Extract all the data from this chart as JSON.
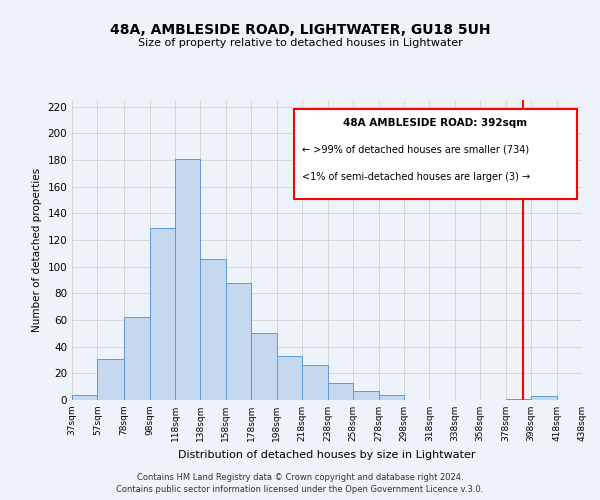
{
  "title": "48A, AMBLESIDE ROAD, LIGHTWATER, GU18 5UH",
  "subtitle": "Size of property relative to detached houses in Lightwater",
  "xlabel": "Distribution of detached houses by size in Lightwater",
  "ylabel": "Number of detached properties",
  "bar_color": "#c5d8f0",
  "bar_edge_color": "#5b9bd5",
  "bg_color": "#eef2f9",
  "grid_color": "#cccccc",
  "red_line_x": 392,
  "legend_title": "48A AMBLESIDE ROAD: 392sqm",
  "legend_line1": "← >99% of detached houses are smaller (734)",
  "legend_line2": "<1% of semi-detached houses are larger (3) →",
  "bin_edges": [
    37,
    57,
    78,
    98,
    118,
    138,
    158,
    178,
    198,
    218,
    238,
    258,
    278,
    298,
    318,
    338,
    358,
    378,
    398,
    418,
    438
  ],
  "bar_heights": [
    4,
    31,
    62,
    129,
    181,
    106,
    88,
    50,
    33,
    26,
    13,
    7,
    4,
    0,
    0,
    0,
    0,
    1,
    3,
    0
  ],
  "yticks": [
    0,
    20,
    40,
    60,
    80,
    100,
    120,
    140,
    160,
    180,
    200,
    220
  ],
  "ylim": [
    0,
    225
  ],
  "footer_line1": "Contains HM Land Registry data © Crown copyright and database right 2024.",
  "footer_line2": "Contains public sector information licensed under the Open Government Licence v.3.0."
}
